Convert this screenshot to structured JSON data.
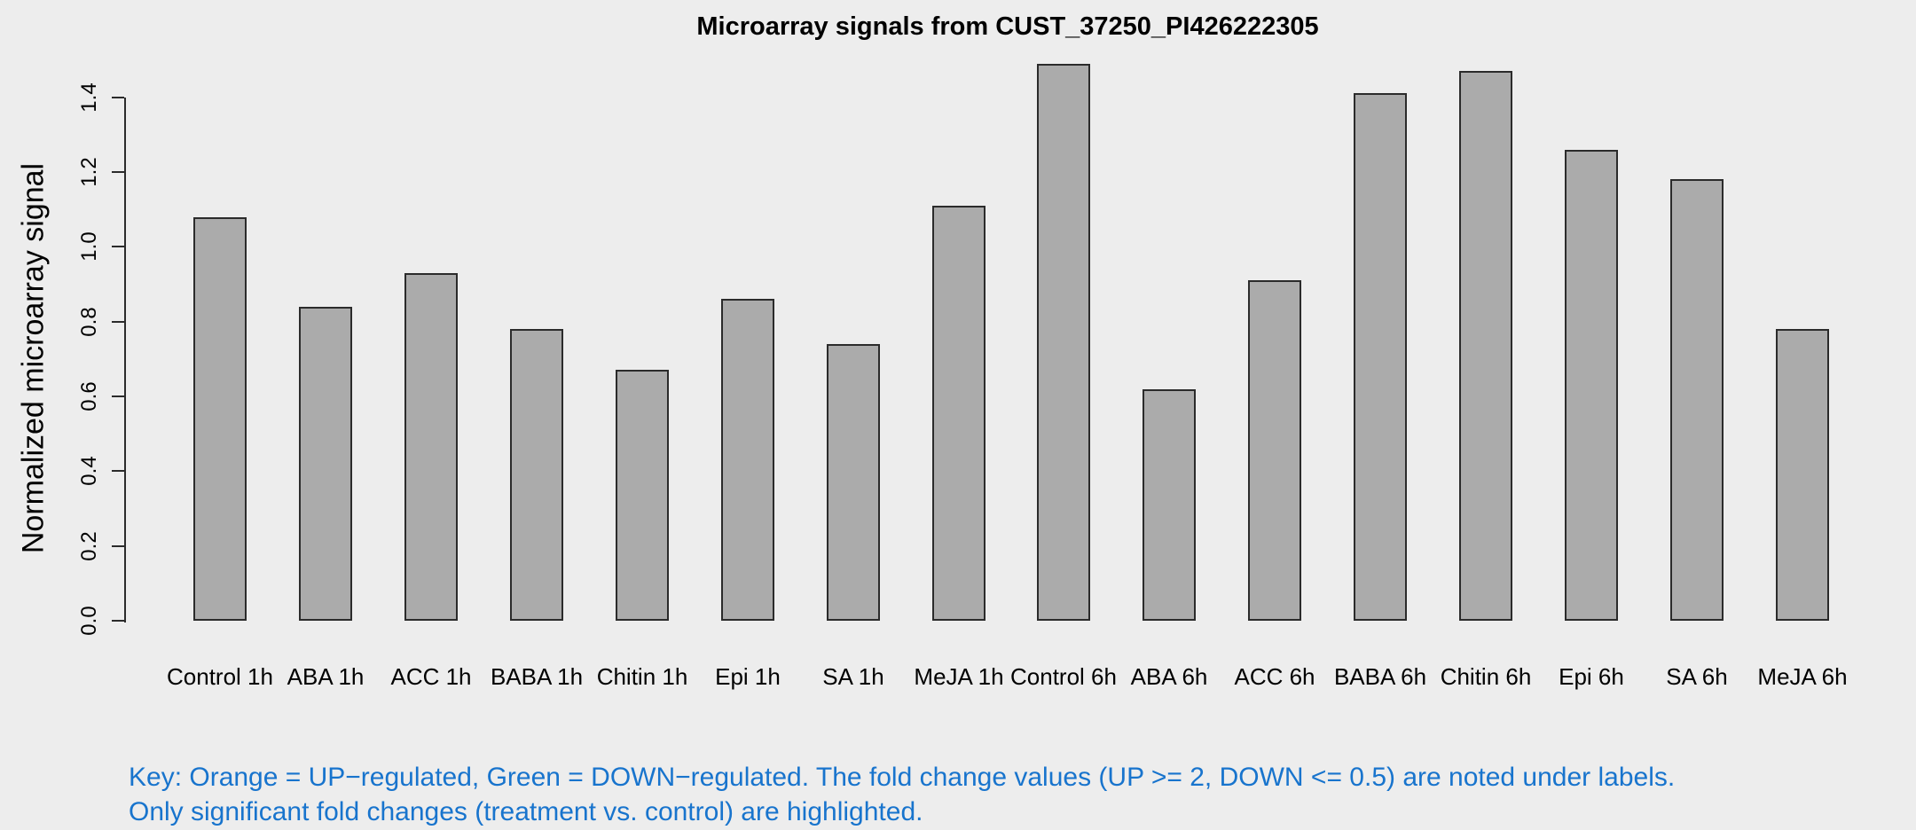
{
  "chart_data": {
    "type": "bar",
    "title": "Microarray signals from CUST_37250_PI426222305",
    "xlabel": "",
    "ylabel": "Normalized microarray signal",
    "ylim": [
      0,
      1.4
    ],
    "yticks": [
      0.0,
      0.2,
      0.4,
      0.6,
      0.8,
      1.0,
      1.2,
      1.4
    ],
    "ytick_labels": [
      "0.0",
      "0.2",
      "0.4",
      "0.6",
      "0.8",
      "1.0",
      "1.2",
      "1.4"
    ],
    "grid": false,
    "legend": "none",
    "categories": [
      "Control 1h",
      "ABA 1h",
      "ACC 1h",
      "BABA 1h",
      "Chitin 1h",
      "Epi 1h",
      "SA 1h",
      "MeJA 1h",
      "Control 6h",
      "ABA 6h",
      "ACC 6h",
      "BABA 6h",
      "Chitin 6h",
      "Epi 6h",
      "SA 6h",
      "MeJA 6h"
    ],
    "values": [
      1.08,
      0.84,
      0.93,
      0.78,
      0.67,
      0.86,
      0.74,
      1.11,
      1.49,
      0.62,
      0.91,
      1.41,
      1.47,
      1.26,
      1.18,
      0.78
    ]
  },
  "colors": {
    "background": "#EDEDED",
    "bar_fill": "#ABABAB",
    "bar_border": "#2B2B2B",
    "axis": "#2B2B2B",
    "text": "#000000",
    "key_text": "#1874CD"
  },
  "key_note": {
    "line1": "Key: Orange = UP−regulated, Green = DOWN−regulated. The fold change values (UP >= 2, DOWN <= 0.5) are noted under labels.",
    "line2": "Only significant fold changes (treatment vs. control) are highlighted."
  }
}
